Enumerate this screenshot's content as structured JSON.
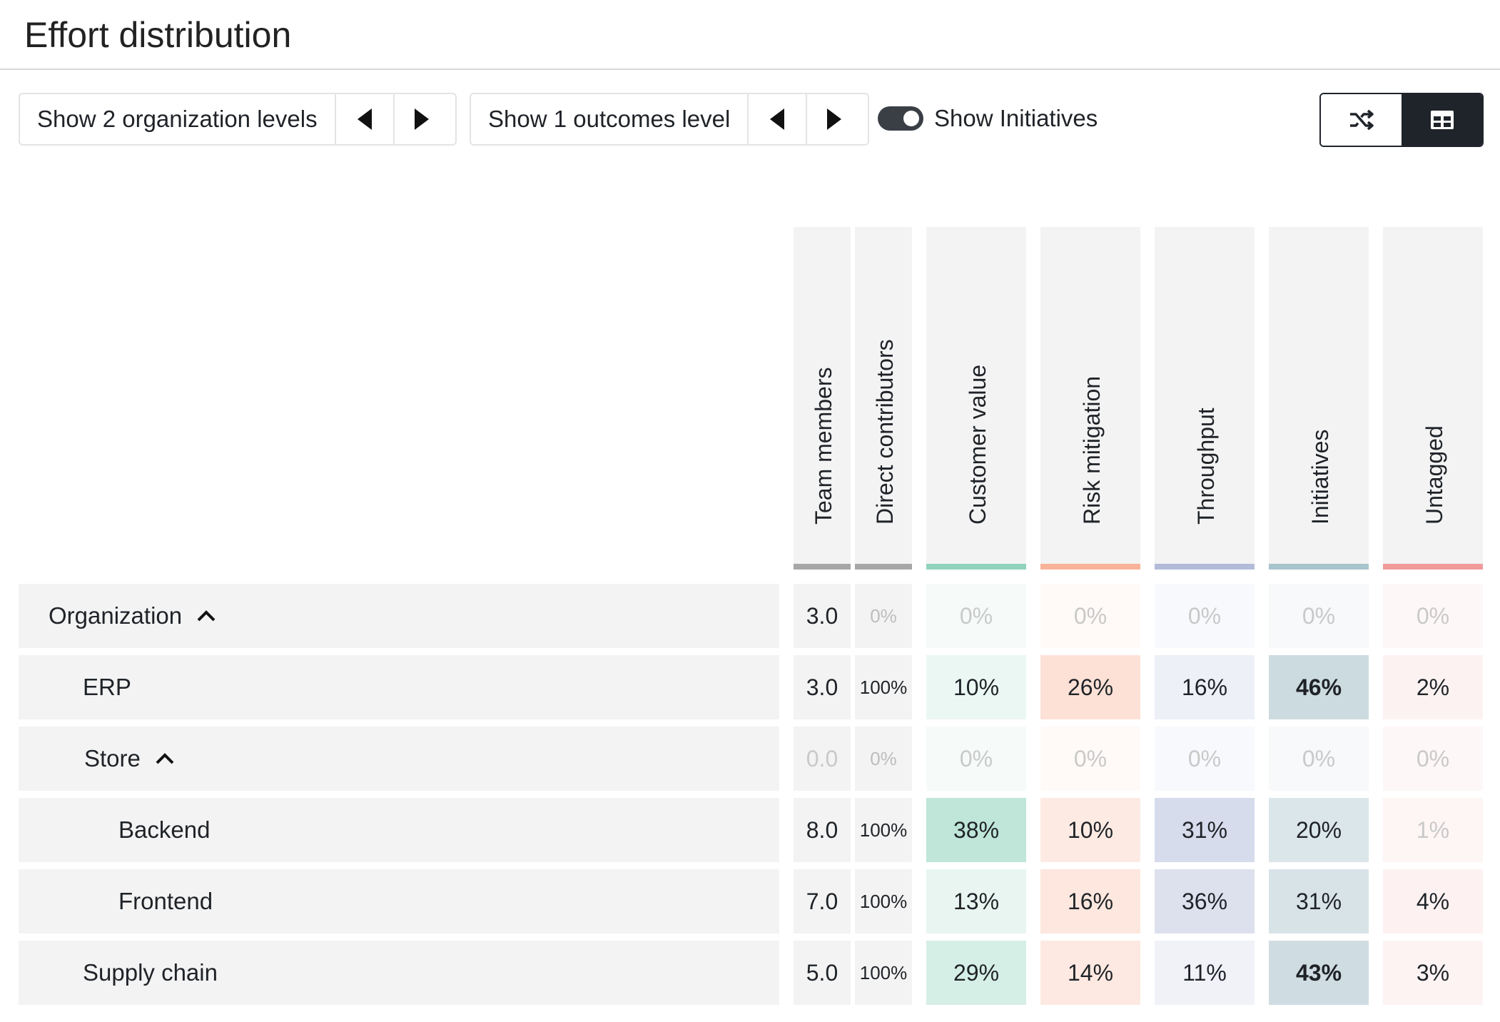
{
  "title": "Effort distribution",
  "controls": {
    "org_levels_label": "Show 2 organization levels",
    "outcome_levels_label": "Show 1 outcomes level",
    "show_initiatives_label": "Show Initiatives",
    "show_initiatives_on": true,
    "icons": {
      "prev": "triangle-left-icon",
      "next": "triangle-right-icon",
      "shuffle": "shuffle-icon",
      "table": "table-icon"
    },
    "active_view": "table"
  },
  "columns": [
    {
      "label": "Team members",
      "color": "#a7a7a7"
    },
    {
      "label": "Direct contributors",
      "color": "#a7a7a7"
    },
    {
      "label": "Customer value",
      "color": "#8fd3bd"
    },
    {
      "label": "Risk mitigation",
      "color": "#f8b399"
    },
    {
      "label": "Throughput",
      "color": "#b2bcd9"
    },
    {
      "label": "Initiatives",
      "color": "#a8c4cd"
    },
    {
      "label": "Untagged",
      "color": "#f19a9a"
    }
  ],
  "rows": [
    {
      "name": "Organization",
      "indent": 0,
      "collapsible": true,
      "values": [
        "3.0",
        "0%",
        "0%",
        "0%",
        "0%",
        "0%",
        "0%"
      ]
    },
    {
      "name": "ERP",
      "indent": 1,
      "collapsible": false,
      "values": [
        "3.0",
        "100%",
        "10%",
        "26%",
        "16%",
        "46%",
        "2%"
      ]
    },
    {
      "name": "Store",
      "indent": 1,
      "collapsible": true,
      "values": [
        "0.0",
        "0%",
        "0%",
        "0%",
        "0%",
        "0%",
        "0%"
      ]
    },
    {
      "name": "Backend",
      "indent": 2,
      "collapsible": false,
      "values": [
        "8.0",
        "100%",
        "38%",
        "10%",
        "31%",
        "20%",
        "1%"
      ]
    },
    {
      "name": "Frontend",
      "indent": 2,
      "collapsible": false,
      "values": [
        "7.0",
        "100%",
        "13%",
        "16%",
        "36%",
        "31%",
        "4%"
      ]
    },
    {
      "name": "Supply chain",
      "indent": 1,
      "collapsible": false,
      "values": [
        "5.0",
        "100%",
        "29%",
        "14%",
        "11%",
        "43%",
        "3%"
      ]
    }
  ]
}
